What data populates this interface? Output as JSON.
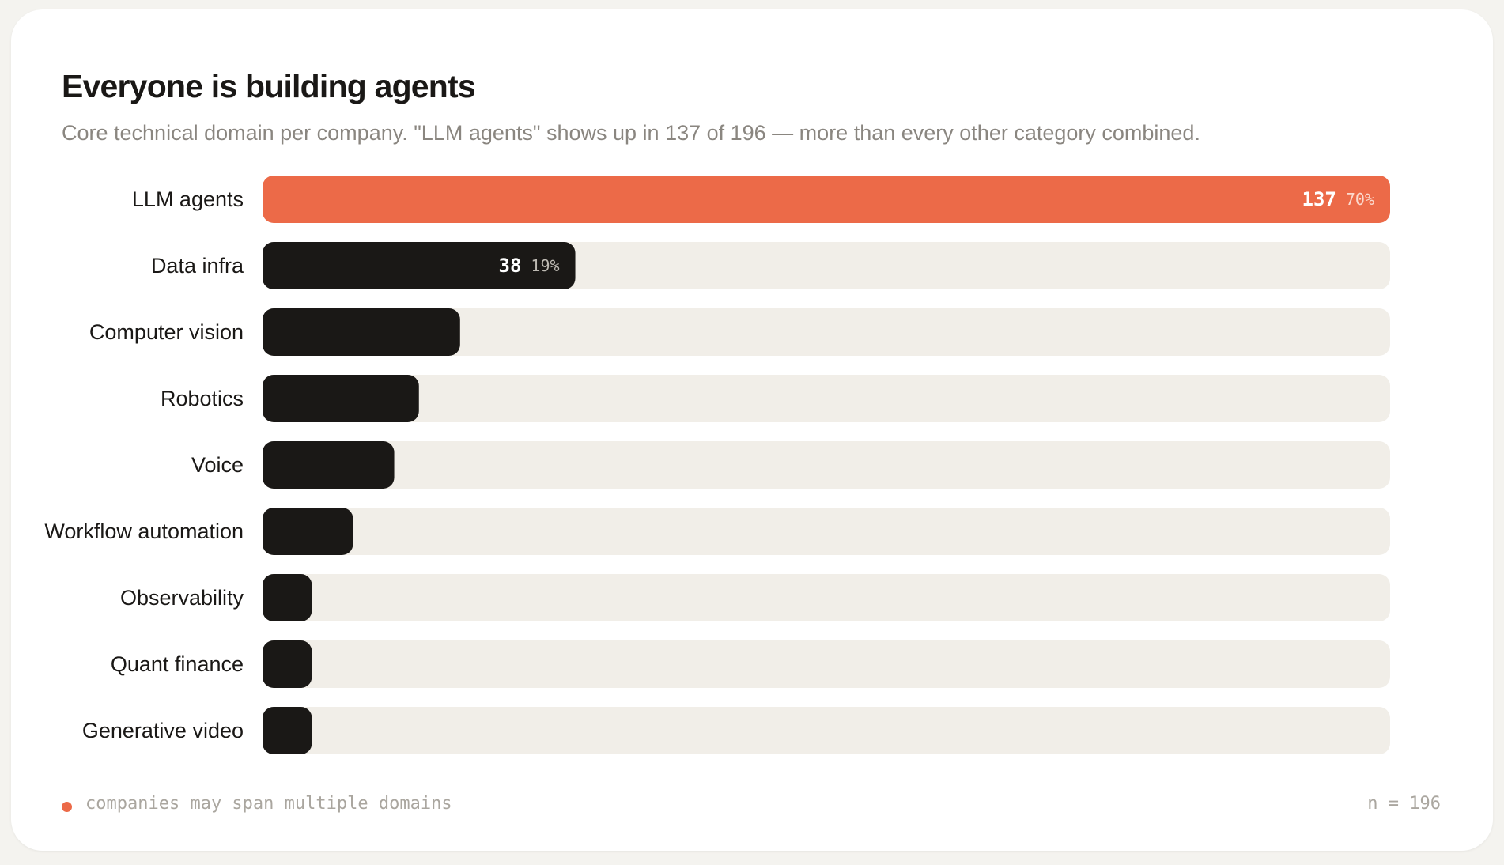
{
  "chart_data": {
    "type": "bar",
    "orientation": "horizontal",
    "title": "Everyone is building agents",
    "subtitle": "Core technical domain per company. \"LLM agents\" shows up in 137 of 196 — more than every other category combined.",
    "categories": [
      "LLM agents",
      "Data infra",
      "Computer vision",
      "Robotics",
      "Voice",
      "Workflow automation",
      "Observability",
      "Quant finance",
      "Generative video"
    ],
    "values": [
      137,
      38,
      24,
      19,
      16,
      11,
      6,
      6,
      6
    ],
    "value_labels": [
      "137",
      "38",
      "",
      "",
      "",
      "",
      "",
      "",
      ""
    ],
    "percent_labels": [
      "70%",
      "19%",
      "",
      "",
      "",
      "",
      "",
      "",
      ""
    ],
    "xlim": [
      0,
      137
    ],
    "grid": false,
    "legend": false,
    "colors": {
      "highlight": "#ec6a48",
      "bar": "#1a1816",
      "track": "#f1eee8",
      "highlight_value_text": "#ffffff",
      "highlight_pct_text": "#fbd9cd",
      "bar_value_text": "#ffffff",
      "bar_pct_text": "#bdb9b2"
    }
  },
  "footer": {
    "note": "companies may span multiple domains",
    "n_label": "n = 196"
  }
}
